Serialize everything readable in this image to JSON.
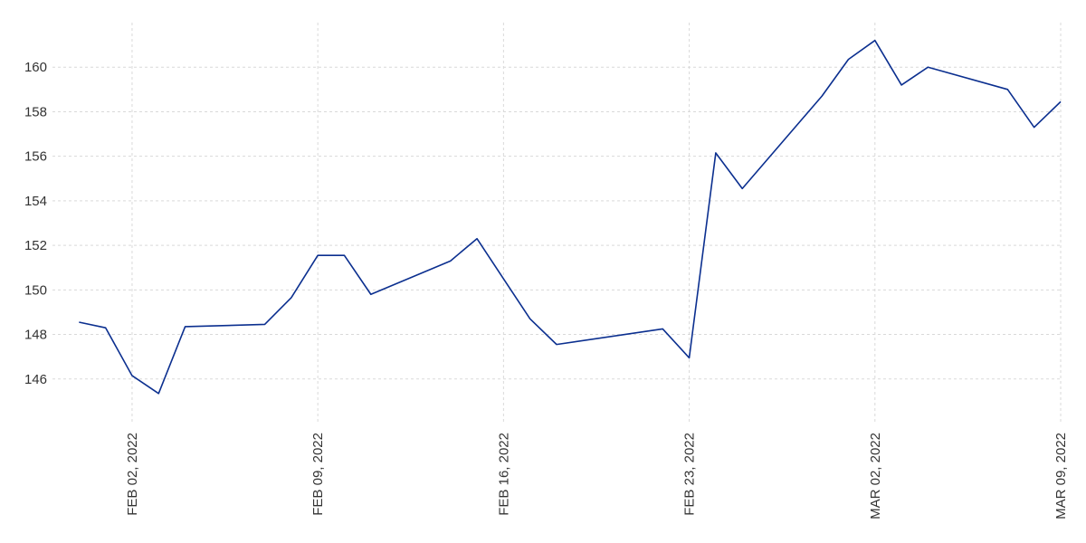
{
  "chart_data": {
    "type": "line",
    "title": "",
    "xlabel": "",
    "ylabel": "",
    "ylim": [
      144,
      162
    ],
    "xlim": [
      "2022-01-30",
      "2022-03-09"
    ],
    "grid": true,
    "legend": "none",
    "y_ticks": [
      146,
      148,
      150,
      152,
      154,
      156,
      158,
      160
    ],
    "x_ticks": [
      {
        "date": "2022-02-02",
        "label": "FEB 02, 2022"
      },
      {
        "date": "2022-02-09",
        "label": "FEB 09, 2022"
      },
      {
        "date": "2022-02-16",
        "label": "FEB 16, 2022"
      },
      {
        "date": "2022-02-23",
        "label": "FEB 23, 2022"
      },
      {
        "date": "2022-03-02",
        "label": "MAR 02, 2022"
      },
      {
        "date": "2022-03-09",
        "label": "MAR 09, 2022"
      }
    ],
    "series": [
      {
        "color": "#0b2f8f",
        "points": [
          [
            "2022-01-31",
            148.55
          ],
          [
            "2022-02-01",
            148.3
          ],
          [
            "2022-02-02",
            146.15
          ],
          [
            "2022-02-03",
            145.35
          ],
          [
            "2022-02-04",
            148.35
          ],
          [
            "2022-02-07",
            148.45
          ],
          [
            "2022-02-08",
            149.65
          ],
          [
            "2022-02-09",
            151.55
          ],
          [
            "2022-02-10",
            151.55
          ],
          [
            "2022-02-11",
            149.8
          ],
          [
            "2022-02-14",
            151.3
          ],
          [
            "2022-02-15",
            152.3
          ],
          [
            "2022-02-16",
            150.5
          ],
          [
            "2022-02-17",
            148.7
          ],
          [
            "2022-02-18",
            147.55
          ],
          [
            "2022-02-22",
            148.25
          ],
          [
            "2022-02-23",
            146.95
          ],
          [
            "2022-02-24",
            156.15
          ],
          [
            "2022-02-25",
            154.55
          ],
          [
            "2022-02-28",
            158.7
          ],
          [
            "2022-03-01",
            160.35
          ],
          [
            "2022-03-02",
            161.2
          ],
          [
            "2022-03-03",
            159.2
          ],
          [
            "2022-03-04",
            160.0
          ],
          [
            "2022-03-07",
            159.0
          ],
          [
            "2022-03-08",
            157.3
          ],
          [
            "2022-03-09",
            158.45
          ]
        ]
      }
    ]
  }
}
